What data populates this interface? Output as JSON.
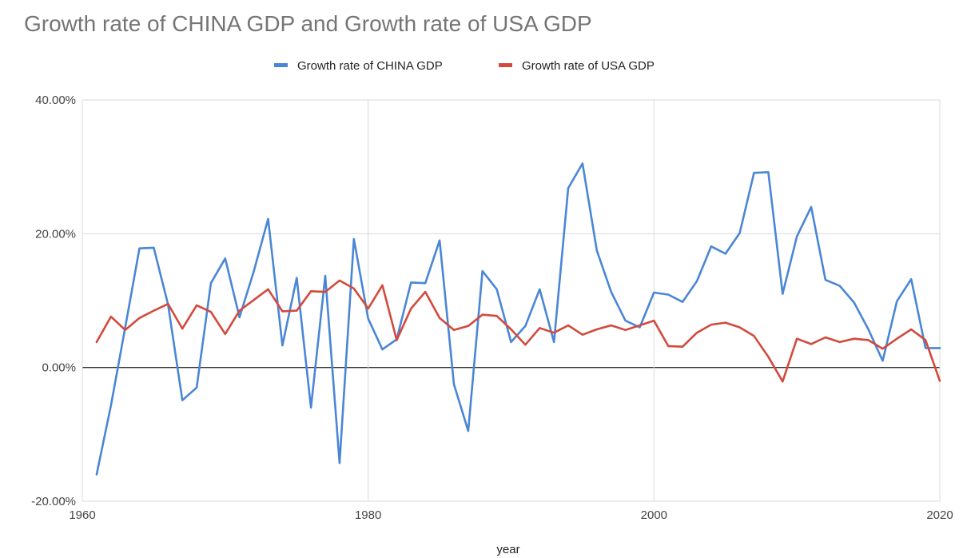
{
  "chart_data": {
    "type": "line",
    "title": "Growth rate of CHINA GDP and Growth rate of USA GDP",
    "xlabel": "year",
    "ylabel": "",
    "xlim": [
      1960,
      2020
    ],
    "ylim": [
      -0.2,
      0.4
    ],
    "x_ticks": [
      1960,
      1980,
      2000,
      2020
    ],
    "x_tick_labels": [
      "1960",
      "1980",
      "2000",
      "2020"
    ],
    "y_ticks": [
      -0.2,
      0.0,
      0.2,
      0.4
    ],
    "y_tick_labels": [
      "-20.00%",
      "0.00%",
      "20.00%",
      "40.00%"
    ],
    "grid": true,
    "legend_position": "top",
    "x": [
      1961,
      1962,
      1963,
      1964,
      1965,
      1966,
      1967,
      1968,
      1969,
      1970,
      1971,
      1972,
      1973,
      1974,
      1975,
      1976,
      1977,
      1978,
      1979,
      1980,
      1981,
      1982,
      1983,
      1984,
      1985,
      1986,
      1987,
      1988,
      1989,
      1990,
      1991,
      1992,
      1993,
      1994,
      1995,
      1996,
      1997,
      1998,
      1999,
      2000,
      2001,
      2002,
      2003,
      2004,
      2005,
      2006,
      2007,
      2008,
      2009,
      2010,
      2011,
      2012,
      2013,
      2014,
      2015,
      2016,
      2017,
      2018,
      2019,
      2020
    ],
    "series": [
      {
        "name": "Growth rate of  CHINA GDP",
        "color": "#4a86d6",
        "values": [
          -0.16,
          -0.057,
          0.06,
          0.178,
          0.179,
          0.094,
          -0.049,
          -0.03,
          0.126,
          0.163,
          0.075,
          0.144,
          0.222,
          0.033,
          0.134,
          -0.06,
          0.137,
          -0.143,
          0.192,
          0.073,
          0.027,
          0.042,
          0.127,
          0.126,
          0.19,
          -0.025,
          -0.095,
          0.144,
          0.117,
          0.038,
          0.062,
          0.117,
          0.038,
          0.268,
          0.305,
          0.175,
          0.113,
          0.07,
          0.06,
          0.112,
          0.109,
          0.098,
          0.129,
          0.181,
          0.17,
          0.201,
          0.291,
          0.292,
          0.11,
          0.196,
          0.24,
          0.131,
          0.122,
          0.097,
          0.057,
          0.01,
          0.099,
          0.132,
          0.029,
          0.029
        ]
      },
      {
        "name": "Growth rate of  USA GDP",
        "color": "#d24a3c",
        "values": [
          0.038,
          0.076,
          0.056,
          0.074,
          0.085,
          0.095,
          0.058,
          0.093,
          0.083,
          0.05,
          0.085,
          0.101,
          0.117,
          0.084,
          0.085,
          0.114,
          0.113,
          0.13,
          0.118,
          0.088,
          0.123,
          0.041,
          0.088,
          0.113,
          0.074,
          0.056,
          0.062,
          0.079,
          0.077,
          0.057,
          0.034,
          0.059,
          0.052,
          0.063,
          0.049,
          0.057,
          0.063,
          0.056,
          0.063,
          0.07,
          0.032,
          0.031,
          0.052,
          0.064,
          0.067,
          0.06,
          0.047,
          0.016,
          -0.021,
          0.043,
          0.035,
          0.045,
          0.038,
          0.043,
          0.041,
          0.028,
          0.043,
          0.057,
          0.041,
          -0.02
        ]
      }
    ]
  }
}
